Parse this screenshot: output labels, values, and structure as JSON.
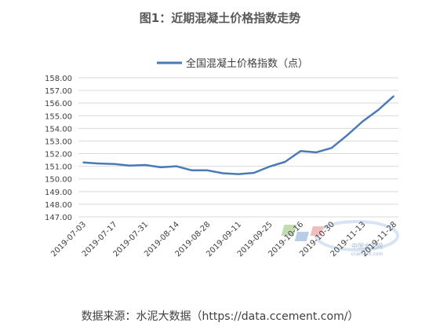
{
  "chart_data": {
    "type": "line",
    "title": "图1：近期混凝土价格指数走势",
    "series": [
      {
        "name": "全国混凝土价格指数（点）",
        "color": "#4a7ab5",
        "values": [
          151.3,
          151.22,
          151.18,
          151.05,
          151.1,
          150.92,
          151.0,
          150.68,
          150.68,
          150.45,
          150.38,
          150.48,
          150.98,
          151.35,
          152.2,
          152.1,
          152.45,
          153.45,
          154.55,
          155.45,
          156.55
        ]
      }
    ],
    "x": [
      "2019-07-03",
      "2019-07-10",
      "2019-07-17",
      "2019-07-24",
      "2019-07-31",
      "2019-08-07",
      "2019-08-14",
      "2019-08-21",
      "2019-08-28",
      "2019-09-04",
      "2019-09-11",
      "2019-09-18",
      "2019-09-25",
      "2019-10-09",
      "2019-10-16",
      "2019-10-23",
      "2019-10-30",
      "2019-11-06",
      "2019-11-13",
      "2019-11-20",
      "2019-11-28"
    ],
    "xtick_labels": [
      "2019-07-03",
      "2019-07-17",
      "2019-07-31",
      "2019-08-14",
      "2019-08-28",
      "2019-09-11",
      "2019-09-25",
      "2019-10-16",
      "2019-10-30",
      "2019-11-13",
      "2019-11-28"
    ],
    "xtick_index": [
      0,
      2,
      4,
      6,
      8,
      10,
      12,
      14,
      16,
      18,
      20
    ],
    "yticks": [
      "158.00",
      "157.00",
      "156.00",
      "155.00",
      "154.00",
      "153.00",
      "152.00",
      "151.00",
      "150.00",
      "149.00",
      "148.00",
      "147.00"
    ],
    "ylim": [
      147,
      158
    ],
    "grid": true,
    "legend_position": "top-center"
  },
  "watermark": {
    "text": "中国水泥网",
    "subtext": "ccement.com"
  },
  "source": "数据来源：水泥大数据（https://data.ccement.com/）"
}
